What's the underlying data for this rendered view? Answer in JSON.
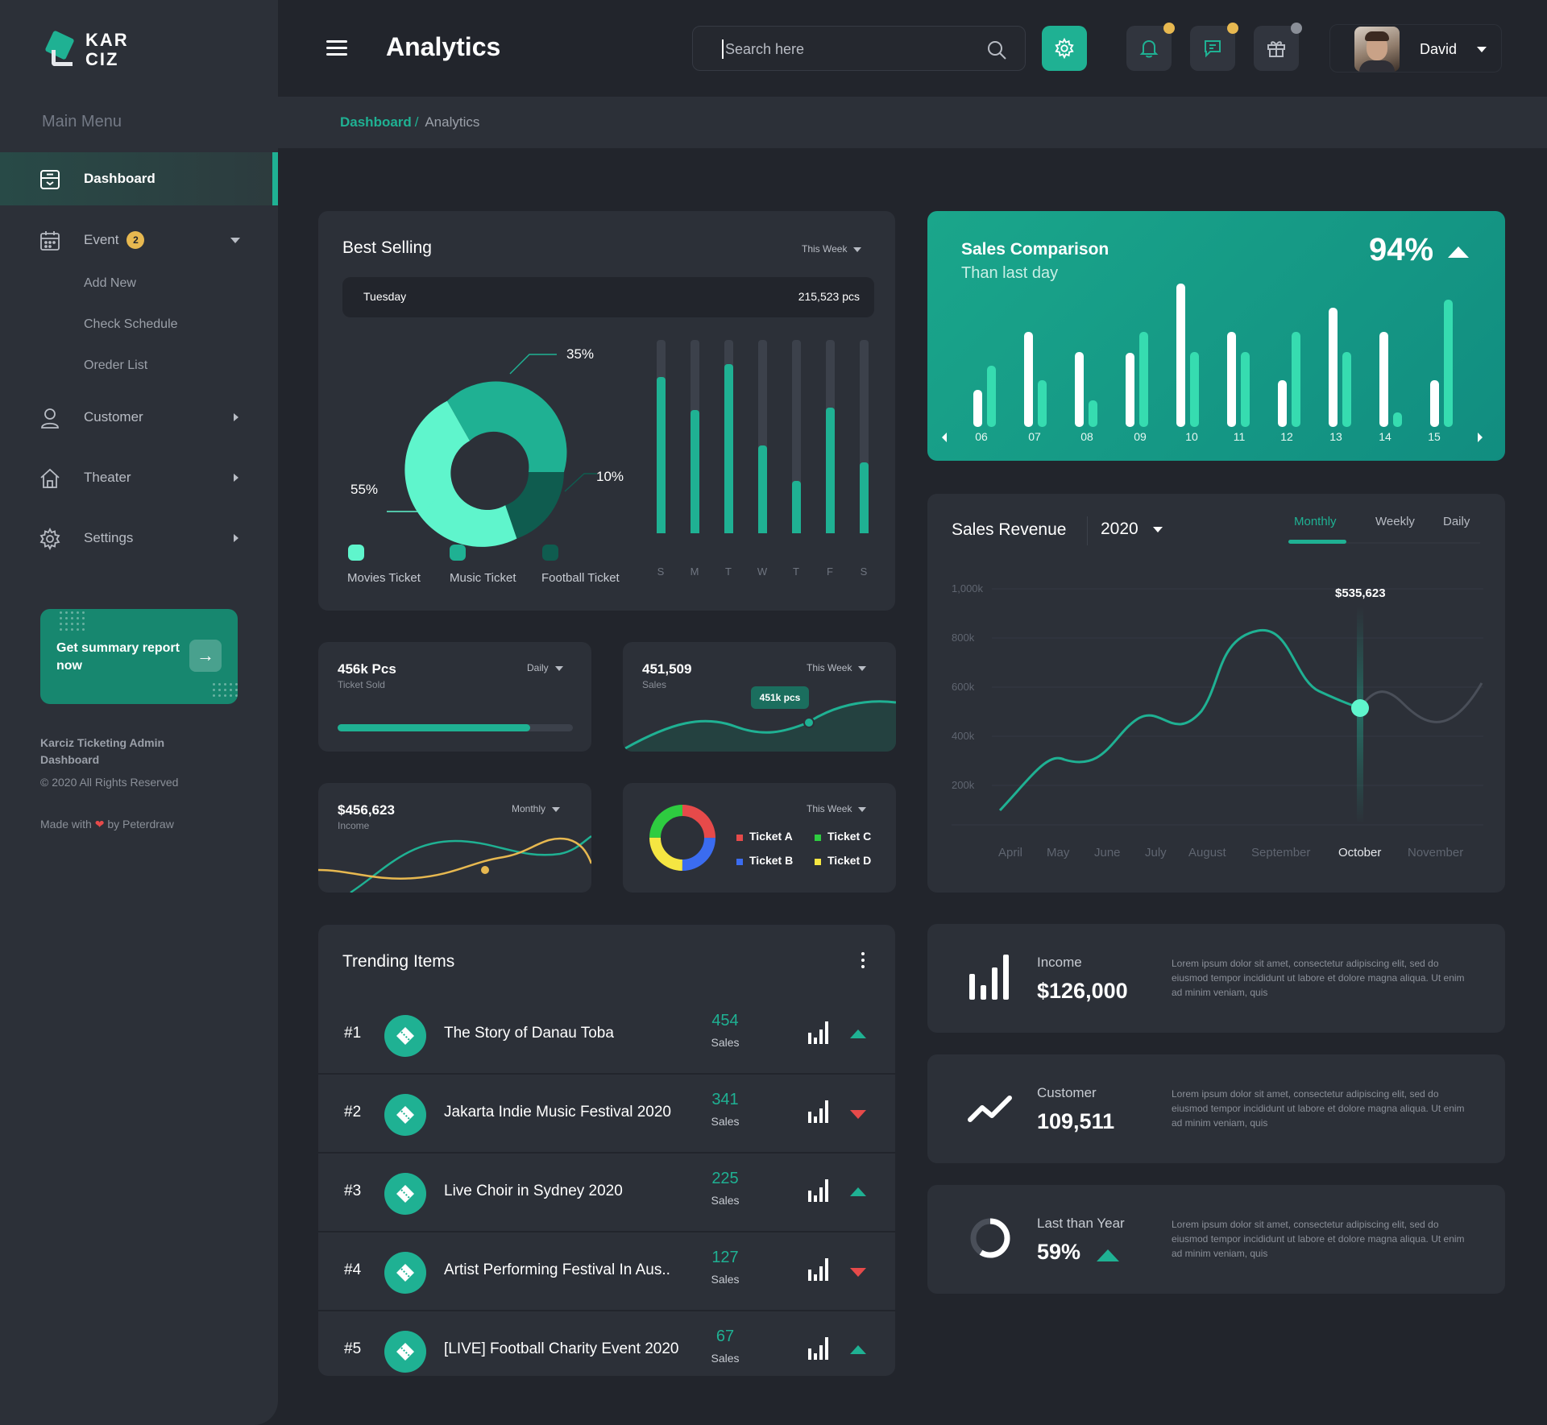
{
  "brand": {
    "line1": "KAR",
    "line2": "CIZ"
  },
  "sidebar": {
    "heading": "Main Menu",
    "items": [
      {
        "label": "Dashboard",
        "icon": "dashboard-icon"
      },
      {
        "label": "Event",
        "icon": "calendar-icon",
        "badge": "2",
        "subitems": [
          "Add New",
          "Check Schedule",
          "Oreder List"
        ]
      },
      {
        "label": "Customer",
        "icon": "user-icon"
      },
      {
        "label": "Theater",
        "icon": "home-icon"
      },
      {
        "label": "Settings",
        "icon": "gear-icon"
      }
    ],
    "summary": {
      "text": "Get summary report now",
      "arrow": "→"
    },
    "footer": {
      "title": "Karciz Ticketing Admin Dashboard",
      "copyright": "© 2020 All Rights Reserved",
      "made_prefix": "Made with",
      "made_suffix": "by Peterdraw"
    }
  },
  "header": {
    "title": "Analytics",
    "search_placeholder": "Search here",
    "user_name": "David"
  },
  "breadcrumb": {
    "root": "Dashboard",
    "sep": "/",
    "current": "Analytics"
  },
  "best_selling": {
    "title": "Best Selling",
    "period": "This Week",
    "day": "Tuesday",
    "day_value": "215,523 pcs",
    "legend": [
      "Movies Ticket",
      "Music Ticket",
      "Football Ticket"
    ],
    "pct_labels": [
      "35%",
      "10%",
      "55%"
    ],
    "days": [
      "S",
      "M",
      "T",
      "W",
      "T",
      "F",
      "S"
    ]
  },
  "stats": {
    "tickets": {
      "value": "456k Pcs",
      "label": "Ticket Sold",
      "period": "Daily",
      "progress": 0.82
    },
    "sales": {
      "value": "451,509",
      "label": "Sales",
      "period": "This Week",
      "tooltip": "451k pcs"
    },
    "income": {
      "value": "$456,623",
      "label": "Income",
      "period": "Monthly"
    },
    "tickets_donut": {
      "period": "This Week",
      "items": [
        "Ticket A",
        "Ticket C",
        "Ticket B",
        "Ticket D"
      ],
      "colors": [
        "#e64a4a",
        "#2ecc40",
        "#3b6cf0",
        "#f5e642"
      ]
    }
  },
  "trending": {
    "title": "Trending Items",
    "sales_label": "Sales",
    "items": [
      {
        "rank": "#1",
        "name": "The Story of Danau Toba",
        "sales": "454",
        "trend": "up"
      },
      {
        "rank": "#2",
        "name": "Jakarta Indie Music Festival 2020",
        "sales": "341",
        "trend": "down"
      },
      {
        "rank": "#3",
        "name": "Live Choir in Sydney 2020",
        "sales": "225",
        "trend": "up"
      },
      {
        "rank": "#4",
        "name": "Artist Performing Festival In Aus..",
        "sales": "127",
        "trend": "down"
      },
      {
        "rank": "#5",
        "name": "[LIVE] Football Charity Event 2020",
        "sales": "67",
        "trend": "up"
      }
    ]
  },
  "sales_comparison": {
    "title": "Sales Comparison",
    "subtitle": "Than last day",
    "percent": "94%",
    "labels": [
      "06",
      "07",
      "08",
      "09",
      "10",
      "11",
      "12",
      "13",
      "14",
      "15"
    ]
  },
  "sales_revenue": {
    "title": "Sales Revenue",
    "year": "2020",
    "tabs": [
      "Monthly",
      "Weekly",
      "Daily"
    ],
    "y_labels": [
      "1,000k",
      "800k",
      "600k",
      "400k",
      "200k"
    ],
    "x_labels": [
      "April",
      "May",
      "June",
      "July",
      "August",
      "September",
      "October",
      "November"
    ],
    "tooltip": "$535,623"
  },
  "info_cards": [
    {
      "label": "Income",
      "value": "$126,000",
      "icon": "bar-chart-icon",
      "desc": "Lorem ipsum dolor sit amet, consectetur adipiscing elit, sed do eiusmod tempor incididunt ut labore et dolore magna aliqua. Ut enim ad minim veniam, quis"
    },
    {
      "label": "Customer",
      "value": "109,511",
      "icon": "trend-line-icon",
      "desc": "Lorem ipsum dolor sit amet, consectetur adipiscing elit, sed do eiusmod tempor incididunt ut labore et dolore magna aliqua. Ut enim ad minim veniam, quis"
    },
    {
      "label": "Last than Year",
      "value": "59%",
      "icon": "ring-progress-icon",
      "desc": "Lorem ipsum dolor sit amet, consectetur adipiscing elit, sed do eiusmod tempor incididunt ut labore et dolore magna aliqua. Ut enim ad minim veniam, quis"
    }
  ],
  "colors": {
    "accent": "#1fb193",
    "background": "#22252c",
    "panel": "#2c3038",
    "up": "#1fb193",
    "down": "#e64a4a",
    "badge": "#e7b850"
  }
}
